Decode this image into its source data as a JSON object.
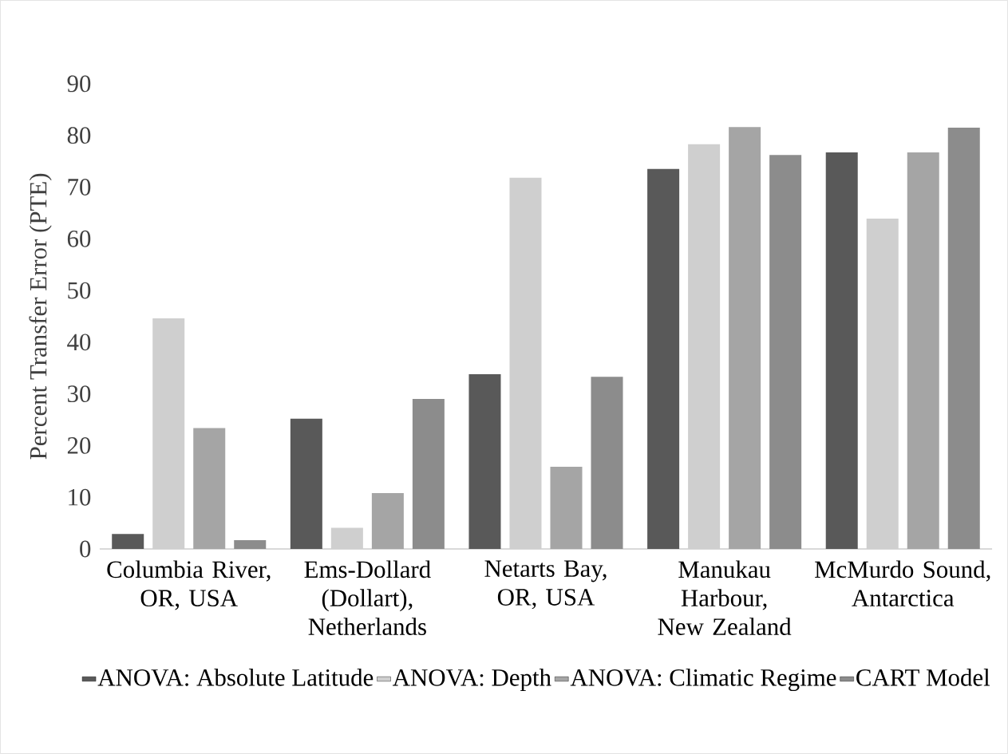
{
  "chart_data": {
    "type": "bar",
    "ylabel": "Percent Transfer Error (PTE)",
    "categories": [
      "Columbia River, OR, USA",
      "Ems-Dollard (Dollart), Netherlands",
      "Netarts Bay, OR, USA",
      "Manukau Harbour, New Zealand",
      "McMurdo Sound, Antarctica"
    ],
    "series": [
      {
        "name": "ANOVA: Absolute Latitude",
        "color": "#595959",
        "values": [
          2.9,
          25.2,
          33.8,
          73.5,
          76.7
        ]
      },
      {
        "name": "ANOVA: Depth",
        "color": "#cfcfcf",
        "values": [
          44.6,
          4.1,
          71.8,
          78.3,
          63.9
        ]
      },
      {
        "name": "ANOVA: Climatic Regime",
        "color": "#a5a5a5",
        "values": [
          23.4,
          10.8,
          15.9,
          81.6,
          76.7
        ]
      },
      {
        "name": "CART Model",
        "color": "#8c8c8c",
        "values": [
          1.7,
          29.0,
          33.3,
          76.2,
          81.5
        ]
      }
    ],
    "ylim": [
      0,
      90
    ],
    "yticks": [
      0,
      10,
      20,
      30,
      40,
      50,
      60,
      70,
      80,
      90
    ],
    "grid": false,
    "legend": "bottom"
  }
}
